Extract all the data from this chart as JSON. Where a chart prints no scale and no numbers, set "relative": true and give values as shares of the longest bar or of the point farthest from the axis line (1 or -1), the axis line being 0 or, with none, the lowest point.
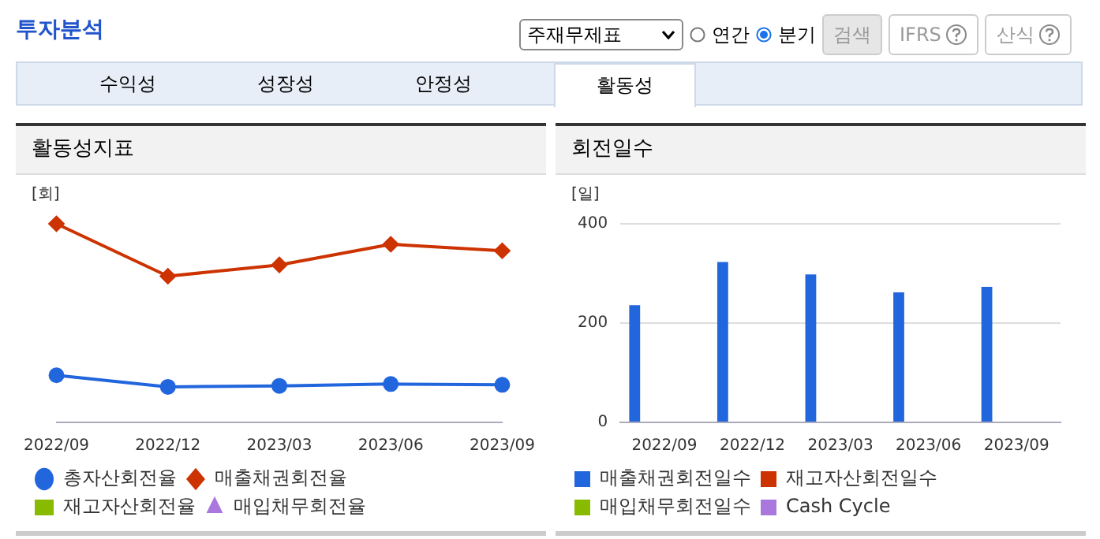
{
  "chart_data": [
    {
      "type": "other",
      "title": "투자분석",
      "annotations": [
        "주재무제표",
        "연간",
        "분기",
        "검색",
        "IFRS",
        "산식",
        "수익성",
        "성장성",
        "안정성",
        "활동성"
      ]
    },
    {
      "type": "line",
      "title": "활동성지표",
      "ylabel": "[회]",
      "relative": true,
      "categories": [
        "2022/09",
        "2022/12",
        "2023/03",
        "2023/06",
        "2023/09"
      ],
      "legend": "bottom",
      "series": [
        {
          "name": "총자산회전율",
          "color": "#2266dd",
          "marker": "circle",
          "values": [
            0.237,
            0.179,
            0.184,
            0.193,
            0.189
          ]
        },
        {
          "name": "매출채권회전율",
          "color": "#cc3300",
          "marker": "diamond",
          "values": [
            1,
            0.736,
            0.793,
            0.897,
            0.864
          ]
        },
        {
          "name": "재고자산회전율",
          "color": "#88bb00",
          "marker": "square",
          "values": [
            null,
            null,
            null,
            null,
            null
          ]
        },
        {
          "name": "매입채무회전율",
          "color": "#aa77dd",
          "marker": "triangle",
          "values": [
            null,
            null,
            null,
            null,
            null
          ]
        }
      ]
    },
    {
      "type": "bar",
      "title": "회전일수",
      "ylabel": "[일]",
      "categories": [
        "2022/09",
        "2022/12",
        "2023/03",
        "2023/06",
        "2023/09"
      ],
      "ylim": [
        0,
        400
      ],
      "yticks": [
        0,
        200,
        400
      ],
      "grid": "y",
      "legend": "bottom",
      "series": [
        {
          "name": "매출채권회전일수",
          "color": "#2266dd",
          "values": [
            236,
            323,
            298,
            262,
            273
          ]
        },
        {
          "name": "재고자산회전일수",
          "color": "#cc3300",
          "values": [
            null,
            null,
            null,
            null,
            null
          ]
        },
        {
          "name": "매입채무회전일수",
          "color": "#88bb00",
          "values": [
            null,
            null,
            null,
            null,
            null
          ]
        },
        {
          "name": "Cash Cycle",
          "color": "#aa77dd",
          "values": [
            null,
            null,
            null,
            null,
            null
          ]
        }
      ]
    }
  ]
}
